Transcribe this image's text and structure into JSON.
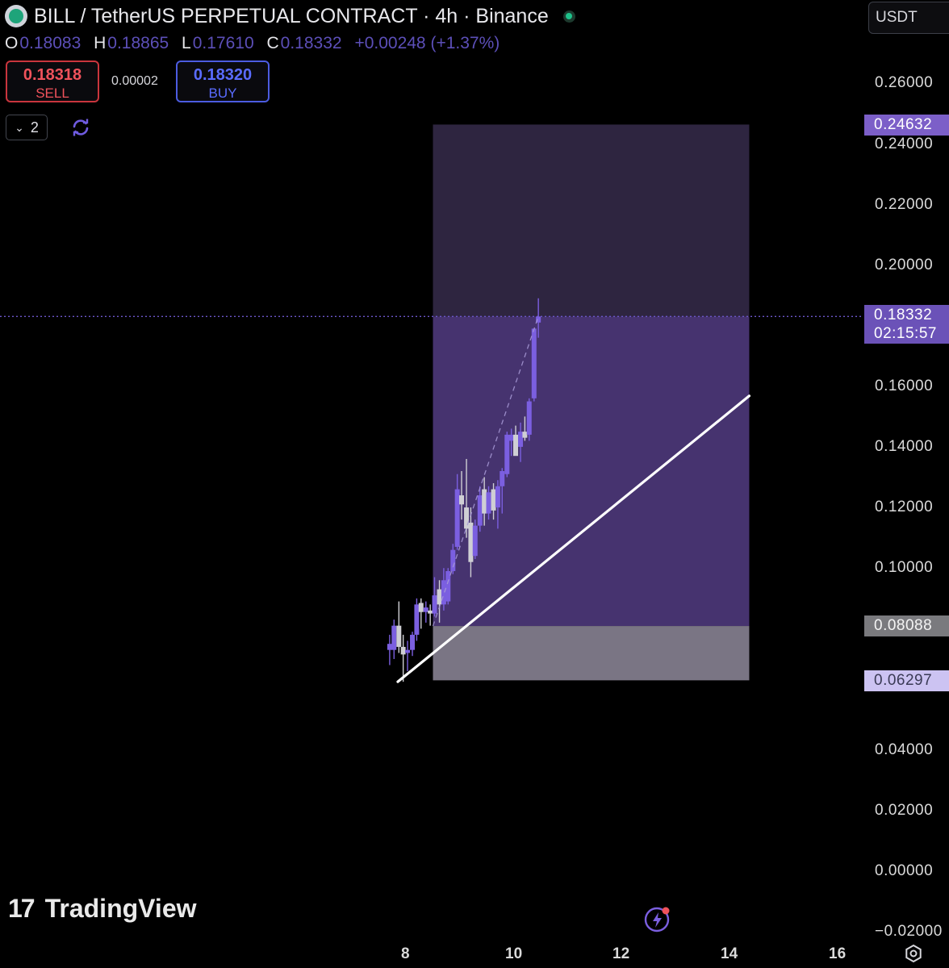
{
  "header": {
    "title": "BILL / TetherUS PERPETUAL CONTRACT · 4h · Binance",
    "ohlc": [
      {
        "key": "O",
        "value": "0.18083"
      },
      {
        "key": "H",
        "value": "0.18865"
      },
      {
        "key": "L",
        "value": "0.17610"
      },
      {
        "key": "C",
        "value": "0.18332"
      }
    ],
    "change": "+0.00248 (+1.37%)",
    "sell": {
      "price": "0.18318",
      "label": "SELL"
    },
    "buy": {
      "price": "0.18320",
      "label": "BUY"
    },
    "spread": "0.00002",
    "collapse_count": "2",
    "currency": "USDT"
  },
  "price_axis": {
    "ticks": [
      "0.26000",
      "0.24000",
      "0.22000",
      "0.20000",
      "0.16000",
      "0.14000",
      "0.12000",
      "0.10000",
      "0.04000",
      "0.02000",
      "0.00000",
      "−0.02000"
    ],
    "tags": {
      "target": "0.24632",
      "current_price": "0.18332",
      "countdown": "02:15:57",
      "entry": "0.08088",
      "stop": "0.06297"
    }
  },
  "time_axis": {
    "ticks": [
      "8",
      "10",
      "12",
      "14",
      "16"
    ]
  },
  "branding": {
    "name": "TradingView"
  },
  "colors": {
    "bull": "#7b5fe0",
    "bear": "#cfcfd4",
    "profit_zone": "#3c2c68",
    "loss_zone": "#7a7584",
    "tag_purple": "#6b52b8"
  },
  "chart_data": {
    "type": "candlestick",
    "timeframe": "4h",
    "ylim": [
      -0.02,
      0.27
    ],
    "xlim": [
      7.3,
      16.3
    ],
    "position": {
      "side": "long",
      "entry": 0.08088,
      "target": 0.24632,
      "stop": 0.06297,
      "x_start": 8.5,
      "x_end": 14.35
    },
    "trendline": {
      "x1": 7.85,
      "y1": 0.0625,
      "x2": 14.35,
      "y2": 0.1568
    },
    "candles": [
      {
        "x": 7.7,
        "o": 0.073,
        "h": 0.078,
        "l": 0.068,
        "c": 0.075
      },
      {
        "x": 7.78,
        "o": 0.073,
        "h": 0.083,
        "l": 0.07,
        "c": 0.081
      },
      {
        "x": 7.87,
        "o": 0.081,
        "h": 0.089,
        "l": 0.072,
        "c": 0.074
      },
      {
        "x": 7.95,
        "o": 0.074,
        "h": 0.078,
        "l": 0.0625,
        "c": 0.0715
      },
      {
        "x": 8.03,
        "o": 0.072,
        "h": 0.076,
        "l": 0.066,
        "c": 0.073
      },
      {
        "x": 8.12,
        "o": 0.073,
        "h": 0.079,
        "l": 0.071,
        "c": 0.078
      },
      {
        "x": 8.2,
        "o": 0.078,
        "h": 0.09,
        "l": 0.076,
        "c": 0.088
      },
      {
        "x": 8.28,
        "o": 0.0885,
        "h": 0.09,
        "l": 0.08,
        "c": 0.0855
      },
      {
        "x": 8.37,
        "o": 0.0855,
        "h": 0.089,
        "l": 0.082,
        "c": 0.087
      },
      {
        "x": 8.45,
        "o": 0.086,
        "h": 0.088,
        "l": 0.081,
        "c": 0.085
      },
      {
        "x": 8.53,
        "o": 0.085,
        "h": 0.097,
        "l": 0.084,
        "c": 0.091
      },
      {
        "x": 8.62,
        "o": 0.093,
        "h": 0.096,
        "l": 0.082,
        "c": 0.088
      },
      {
        "x": 8.7,
        "o": 0.088,
        "h": 0.1,
        "l": 0.086,
        "c": 0.096
      },
      {
        "x": 8.78,
        "o": 0.089,
        "h": 0.1,
        "l": 0.088,
        "c": 0.099
      },
      {
        "x": 8.87,
        "o": 0.099,
        "h": 0.108,
        "l": 0.098,
        "c": 0.106
      },
      {
        "x": 8.95,
        "o": 0.107,
        "h": 0.131,
        "l": 0.106,
        "c": 0.126
      },
      {
        "x": 9.03,
        "o": 0.124,
        "h": 0.132,
        "l": 0.116,
        "c": 0.121
      },
      {
        "x": 9.12,
        "o": 0.12,
        "h": 0.136,
        "l": 0.11,
        "c": 0.113
      },
      {
        "x": 9.2,
        "o": 0.115,
        "h": 0.12,
        "l": 0.097,
        "c": 0.102
      },
      {
        "x": 9.28,
        "o": 0.104,
        "h": 0.116,
        "l": 0.103,
        "c": 0.114
      },
      {
        "x": 9.37,
        "o": 0.114,
        "h": 0.127,
        "l": 0.112,
        "c": 0.124
      },
      {
        "x": 9.45,
        "o": 0.126,
        "h": 0.13,
        "l": 0.114,
        "c": 0.118
      },
      {
        "x": 9.53,
        "o": 0.118,
        "h": 0.127,
        "l": 0.116,
        "c": 0.125
      },
      {
        "x": 9.62,
        "o": 0.126,
        "h": 0.128,
        "l": 0.116,
        "c": 0.119
      },
      {
        "x": 9.7,
        "o": 0.12,
        "h": 0.129,
        "l": 0.113,
        "c": 0.127
      },
      {
        "x": 9.78,
        "o": 0.127,
        "h": 0.133,
        "l": 0.118,
        "c": 0.132
      },
      {
        "x": 9.87,
        "o": 0.131,
        "h": 0.145,
        "l": 0.13,
        "c": 0.144
      },
      {
        "x": 9.95,
        "o": 0.142,
        "h": 0.146,
        "l": 0.137,
        "c": 0.144
      },
      {
        "x": 10.03,
        "o": 0.144,
        "h": 0.147,
        "l": 0.139,
        "c": 0.137
      },
      {
        "x": 10.12,
        "o": 0.14,
        "h": 0.148,
        "l": 0.135,
        "c": 0.145
      },
      {
        "x": 10.2,
        "o": 0.145,
        "h": 0.15,
        "l": 0.142,
        "c": 0.143
      },
      {
        "x": 10.28,
        "o": 0.144,
        "h": 0.156,
        "l": 0.142,
        "c": 0.155
      },
      {
        "x": 10.37,
        "o": 0.156,
        "h": 0.179,
        "l": 0.155,
        "c": 0.179
      },
      {
        "x": 10.45,
        "o": 0.181,
        "h": 0.189,
        "l": 0.176,
        "c": 0.183
      }
    ]
  }
}
